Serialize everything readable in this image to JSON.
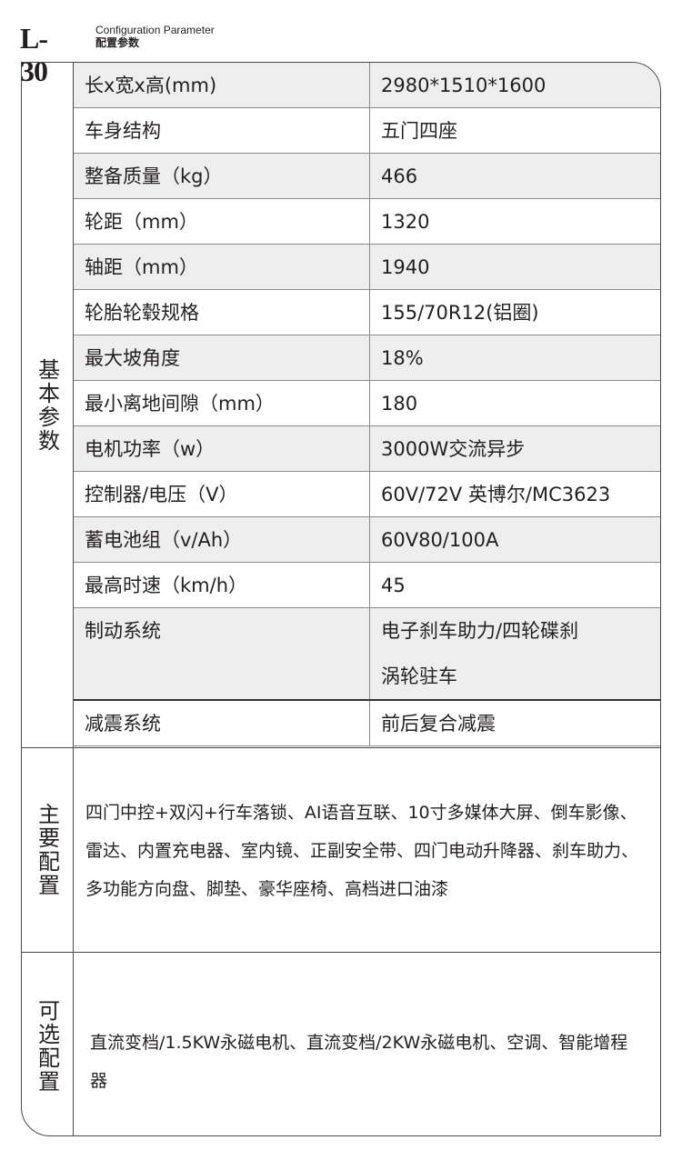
{
  "header": {
    "model": "L-30",
    "subtitle_en": "Configuration Parameter",
    "subtitle_cn": "配置参数"
  },
  "basic": {
    "label": "基本参数",
    "rows": [
      {
        "key": "长x宽x高(mm)",
        "value": "2980*1510*1600"
      },
      {
        "key": "车身结构",
        "value": "五门四座"
      },
      {
        "key": "整备质量（kg）",
        "value": "466"
      },
      {
        "key": "轮距（mm）",
        "value": "1320"
      },
      {
        "key": "轴距（mm）",
        "value": "1940"
      },
      {
        "key": "轮胎轮毂规格",
        "value": "155/70R12(铝圈)"
      },
      {
        "key": "最大坡角度",
        "value": "18%"
      },
      {
        "key": "最小离地间隙（mm）",
        "value": "180"
      },
      {
        "key": "电机功率（w）",
        "value": "3000W交流异步"
      },
      {
        "key": "控制器/电压（V）",
        "value": "60V/72V 英博尔/MC3623"
      },
      {
        "key": "蓄电池组（v/Ah）",
        "value": "60V80/100A"
      },
      {
        "key": "最高时速（km/h）",
        "value": "45"
      },
      {
        "key": "制动系统",
        "value": "电子刹车助力/四轮碟刹",
        "value2": "涡轮驻车"
      },
      {
        "key": "减震系统",
        "value": "前后复合减震"
      }
    ]
  },
  "main_config": {
    "label": "主要配置",
    "text": "四门中控+双闪+行车落锁、AI语音互联、10寸多媒体大屏、倒车影像、雷达、内置充电器、室内镜、正副安全带、四门电动升降器、刹车助力、多功能方向盘、脚垫、豪华座椅、高档进口油漆"
  },
  "optional_config": {
    "label": "可选配置",
    "text": "直流变档/1.5KW永磁电机、直流变档/2KW永磁电机、空调、智能增程器"
  }
}
